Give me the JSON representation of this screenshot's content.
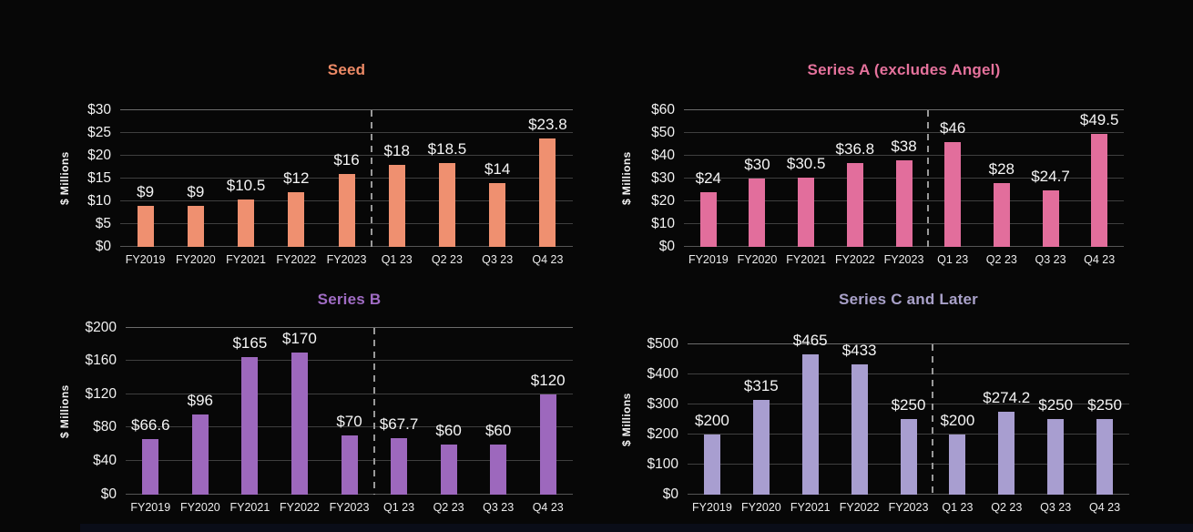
{
  "page": {
    "background": "#070707"
  },
  "chart_data": [
    {
      "type": "bar",
      "title": "Seed",
      "ylabel": "$ Millions",
      "accent": "#ed8a66",
      "bar_color": "#ef9070",
      "categories": [
        "FY2019",
        "FY2020",
        "FY2021",
        "FY2022",
        "FY2023",
        "Q1 23",
        "Q2 23",
        "Q3 23",
        "Q4 23"
      ],
      "values": [
        9,
        9,
        10.5,
        12,
        16,
        18,
        18.5,
        14,
        23.8
      ],
      "bar_labels": [
        "$9",
        "$9",
        "$10.5",
        "$12",
        "$16",
        "$18",
        "$18.5",
        "$14",
        "$23.8"
      ],
      "ylim": [
        0,
        30
      ],
      "yticks": [
        0,
        5,
        10,
        15,
        20,
        25,
        30
      ],
      "ytick_labels": [
        "$0",
        "$5",
        "$10",
        "$15",
        "$20",
        "$25",
        "$30"
      ],
      "separator_after_category": "FY2023",
      "separator_index": 5,
      "grid": true,
      "legend": false
    },
    {
      "type": "bar",
      "title": "Series A (excludes Angel)",
      "ylabel": "$ Millions",
      "accent": "#e5729c",
      "bar_color": "#e26e9c",
      "categories": [
        "FY2019",
        "FY2020",
        "FY2021",
        "FY2022",
        "FY2023",
        "Q1 23",
        "Q2 23",
        "Q3 23",
        "Q4 23"
      ],
      "values": [
        24,
        30,
        30.5,
        36.8,
        38,
        46,
        28,
        24.7,
        49.5
      ],
      "bar_labels": [
        "$24",
        "$30",
        "$30.5",
        "$36.8",
        "$38",
        "$46",
        "$28",
        "$24.7",
        "$49.5"
      ],
      "ylim": [
        0,
        60
      ],
      "yticks": [
        0,
        10,
        20,
        30,
        40,
        50,
        60
      ],
      "ytick_labels": [
        "$0",
        "$10",
        "$20",
        "$30",
        "$40",
        "$50",
        "$60"
      ],
      "separator_after_category": "FY2023",
      "separator_index": 5,
      "grid": true,
      "legend": false
    },
    {
      "type": "bar",
      "title": "Series B",
      "ylabel": "$ Millions",
      "accent": "#a06cc4",
      "bar_color": "#9d68bd",
      "categories": [
        "FY2019",
        "FY2020",
        "FY2021",
        "FY2022",
        "FY2023",
        "Q1 23",
        "Q2 23",
        "Q3 23",
        "Q4 23"
      ],
      "values": [
        66.6,
        96,
        165,
        170,
        70,
        67.7,
        60,
        60,
        120
      ],
      "bar_labels": [
        "$66.6",
        "$96",
        "$165",
        "$170",
        "$70",
        "$67.7",
        "$60",
        "$60",
        "$120"
      ],
      "ylim": [
        0,
        200
      ],
      "yticks": [
        0,
        40,
        80,
        120,
        160,
        200
      ],
      "ytick_labels": [
        "$0",
        "$40",
        "$80",
        "$120",
        "$160",
        "$200"
      ],
      "separator_after_category": "FY2023",
      "separator_index": 5,
      "grid": true,
      "legend": false
    },
    {
      "type": "bar",
      "title": "Series C and Later",
      "ylabel": "$ Millions",
      "accent": "#a9a1c9",
      "bar_color": "#a89ed0",
      "categories": [
        "FY2019",
        "FY2020",
        "FY2021",
        "FY2022",
        "FY2023",
        "Q1 23",
        "Q2 23",
        "Q3 23",
        "Q4 23"
      ],
      "values": [
        200,
        315,
        465,
        433,
        250,
        200,
        274.2,
        250,
        250
      ],
      "bar_labels": [
        "$200",
        "$315",
        "$465",
        "$433",
        "$250",
        "$200",
        "$274.2",
        "$250",
        "$250"
      ],
      "ylim": [
        0,
        500
      ],
      "yticks": [
        0,
        100,
        200,
        300,
        400,
        500
      ],
      "ytick_labels": [
        "$0",
        "$100",
        "$200",
        "$300",
        "$400",
        "$500"
      ],
      "separator_after_category": "FY2023",
      "separator_index": 5,
      "grid": true,
      "legend": false
    }
  ]
}
